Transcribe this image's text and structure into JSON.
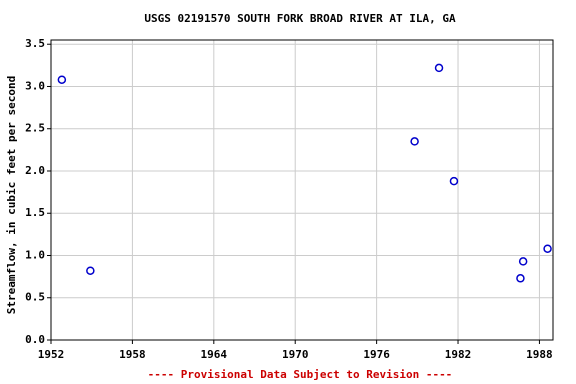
{
  "chart_data": {
    "type": "scatter",
    "title": "USGS 02191570 SOUTH FORK BROAD RIVER AT ILA, GA",
    "y_label": "Streamflow, in cubic feet per second",
    "footnote": "---- Provisional Data Subject to Revision ----",
    "series": [
      {
        "name": "Streamflow",
        "color": "#0000cc",
        "x": [
          1952.8,
          1954.9,
          1978.8,
          1980.6,
          1981.7,
          1986.6,
          1986.8,
          1988.6
        ],
        "values": [
          3.08,
          0.82,
          2.35,
          3.22,
          1.88,
          0.73,
          0.93,
          1.08
        ]
      }
    ],
    "xlim": [
      1952,
      1989
    ],
    "xticks": [
      1952,
      1958,
      1964,
      1970,
      1976,
      1982,
      1988
    ],
    "ylim": [
      0,
      3.55
    ],
    "yticks": [
      {
        "value": 0,
        "label": "0.0"
      },
      {
        "value": 0.5,
        "label": "0.5"
      },
      {
        "value": 1,
        "label": "1.0"
      },
      {
        "value": 1.5,
        "label": "1.5"
      },
      {
        "value": 2,
        "label": "2.0"
      },
      {
        "value": 2.5,
        "label": "2.5"
      },
      {
        "value": 3,
        "label": "3.0"
      },
      {
        "value": 3.5,
        "label": "3.5"
      }
    ],
    "grid": true
  }
}
